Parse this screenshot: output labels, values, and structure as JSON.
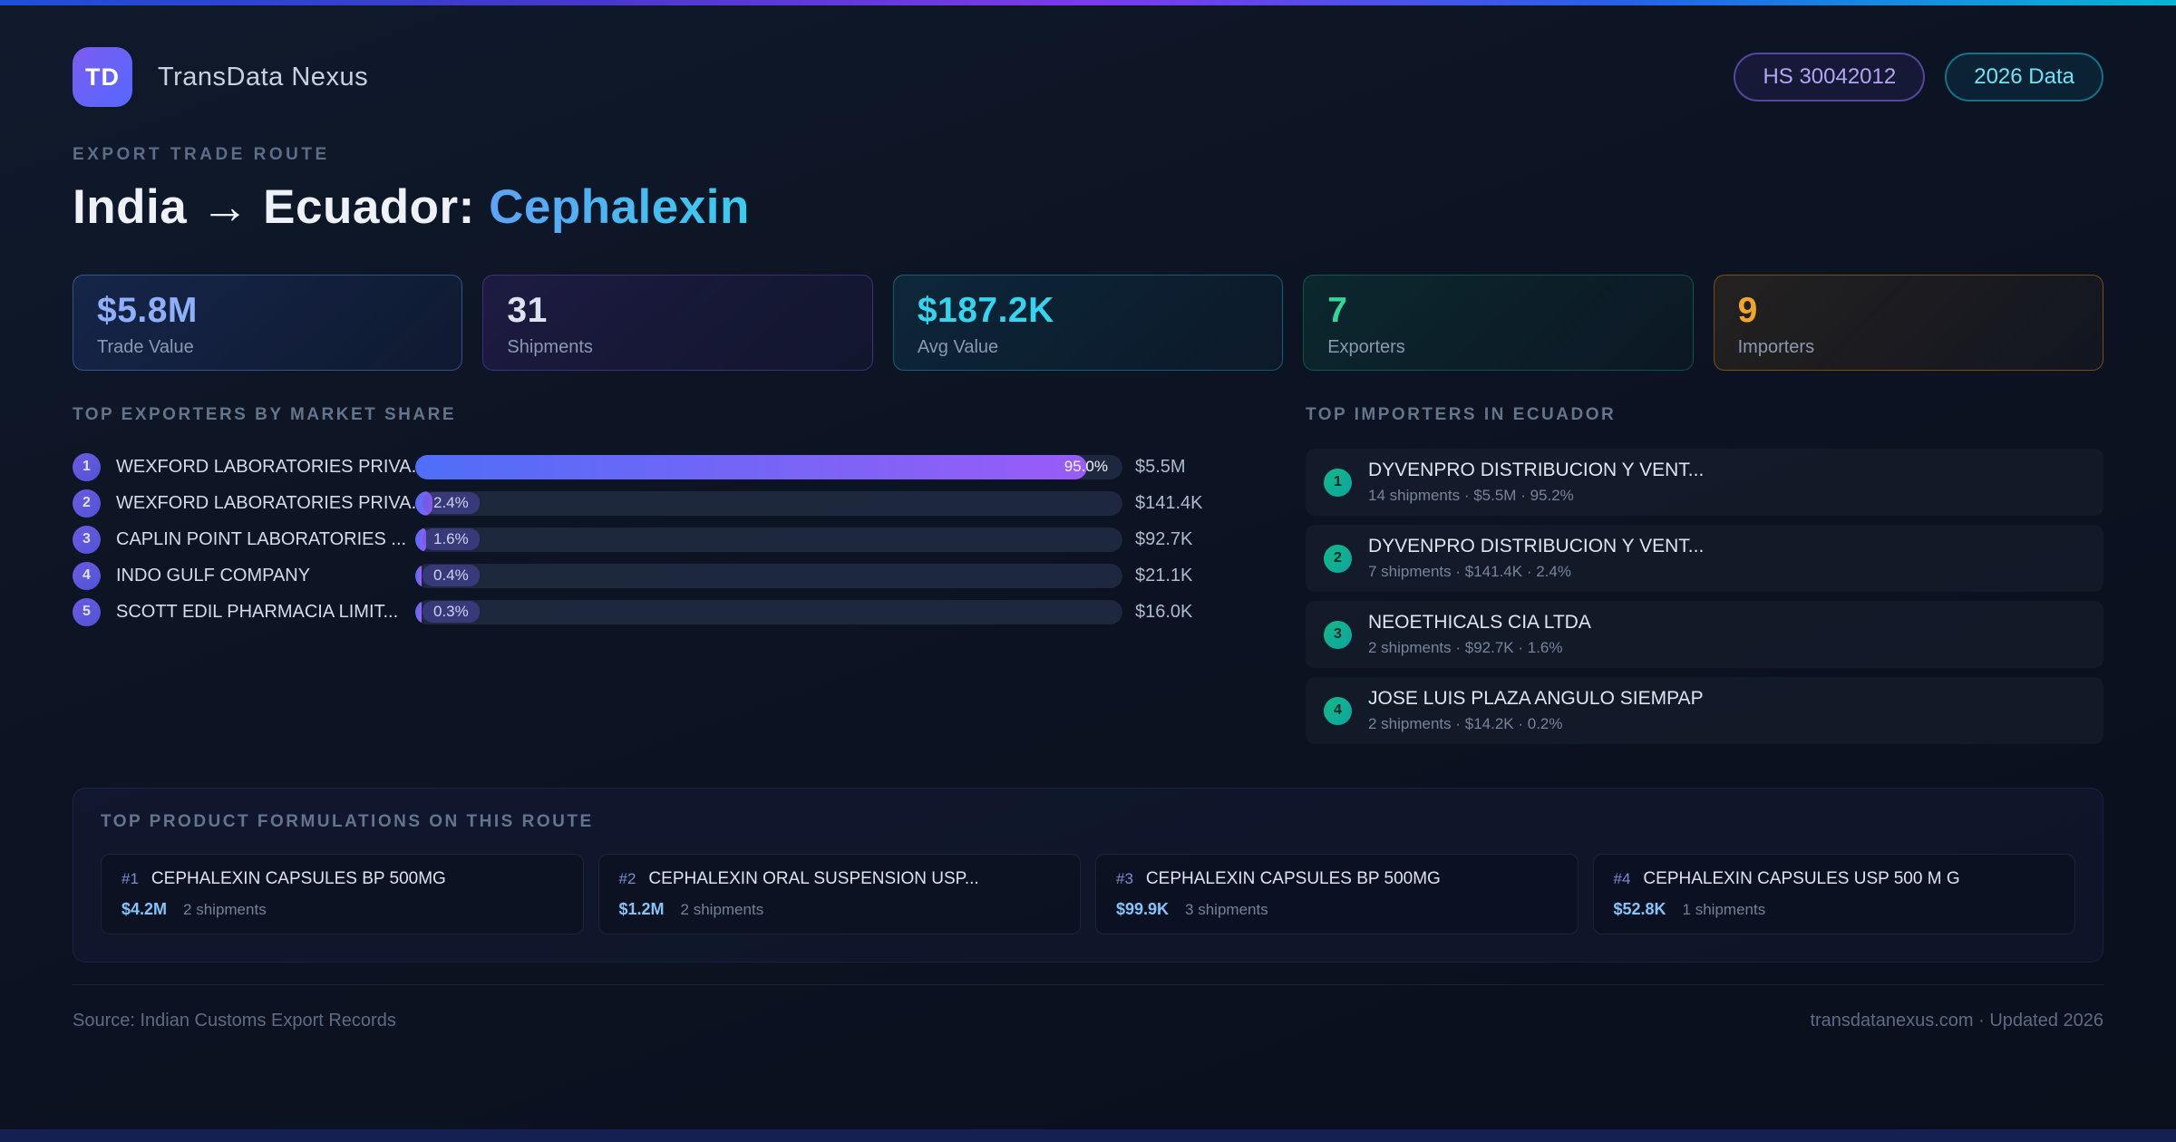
{
  "app": {
    "logo": "TD",
    "title": "TransData Nexus",
    "badges": [
      {
        "label": "HS 30042012"
      },
      {
        "label": "2026 Data"
      }
    ]
  },
  "header": {
    "eyebrow": "EXPORT TRADE ROUTE",
    "title_main": "India → Ecuador: ",
    "title_highlight": "Cephalexin"
  },
  "stats": [
    {
      "value": "$5.8M",
      "label": "Trade Value",
      "color": "#8fb0f9"
    },
    {
      "value": "31",
      "label": "Shipments",
      "color": "#dde3ee"
    },
    {
      "value": "$187.2K",
      "label": "Avg Value",
      "color": "#33d6ee"
    },
    {
      "value": "7",
      "label": "Exporters",
      "color": "#31d69a"
    },
    {
      "value": "9",
      "label": "Importers",
      "color": "#f0a62a"
    }
  ],
  "exporters": {
    "heading": "TOP EXPORTERS BY MARKET SHARE",
    "rows": [
      {
        "rank": "1",
        "name": "WEXFORD LABORATORIES PRIVA...",
        "share": "95.0%",
        "share_pct": 95.0,
        "value": "$5.5M"
      },
      {
        "rank": "2",
        "name": "WEXFORD LABORATORIES PRIVA...",
        "share": "2.4%",
        "share_pct": 2.4,
        "value": "$141.4K"
      },
      {
        "rank": "3",
        "name": "CAPLIN POINT LABORATORIES ...",
        "share": "1.6%",
        "share_pct": 1.6,
        "value": "$92.7K"
      },
      {
        "rank": "4",
        "name": "INDO GULF COMPANY",
        "share": "0.4%",
        "share_pct": 0.4,
        "value": "$21.1K"
      },
      {
        "rank": "5",
        "name": "SCOTT EDIL PHARMACIA LIMIT...",
        "share": "0.3%",
        "share_pct": 0.3,
        "value": "$16.0K"
      }
    ]
  },
  "importers": {
    "heading": "TOP IMPORTERS IN ECUADOR",
    "rows": [
      {
        "rank": "1",
        "name": "DYVENPRO DISTRIBUCION Y VENT...",
        "detail": "14 shipments · $5.5M · 95.2%"
      },
      {
        "rank": "2",
        "name": "DYVENPRO DISTRIBUCION Y VENT...",
        "detail": "7 shipments · $141.4K · 2.4%"
      },
      {
        "rank": "3",
        "name": "NEOETHICALS CIA LTDA",
        "detail": "2 shipments · $92.7K · 1.6%"
      },
      {
        "rank": "4",
        "name": "JOSE LUIS PLAZA ANGULO SIEMPAP",
        "detail": "2 shipments · $14.2K · 0.2%"
      }
    ]
  },
  "products": {
    "heading": "TOP PRODUCT FORMULATIONS ON THIS ROUTE",
    "cards": [
      {
        "rank": "#1",
        "name": "CEPHALEXIN CAPSULES BP 500MG",
        "value": "$4.2M",
        "shipments": "2 shipments"
      },
      {
        "rank": "#2",
        "name": "CEPHALEXIN ORAL SUSPENSION USP...",
        "value": "$1.2M",
        "shipments": "2 shipments"
      },
      {
        "rank": "#3",
        "name": "CEPHALEXIN CAPSULES BP 500MG",
        "value": "$99.9K",
        "shipments": "3 shipments"
      },
      {
        "rank": "#4",
        "name": "CEPHALEXIN CAPSULES USP 500 M G",
        "value": "$52.8K",
        "shipments": "1 shipments"
      }
    ]
  },
  "footer": {
    "source": "Source: Indian Customs Export Records",
    "site": "transdatanexus.com · Updated 2026"
  }
}
